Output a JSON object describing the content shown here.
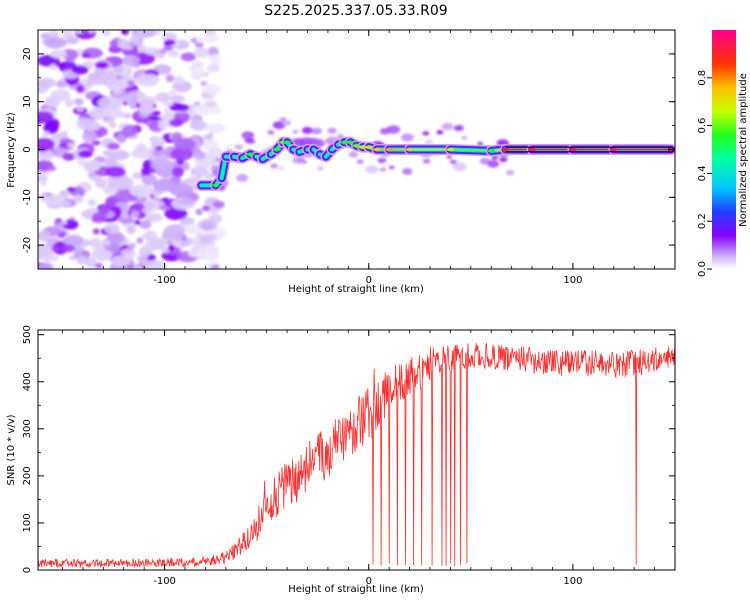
{
  "title": "S225.2025.337.05.33.R09",
  "colors": {
    "snr_line": "#ff3030",
    "axis": "#000000",
    "colormap": [
      "#ffffff",
      "#c8a8f8",
      "#8800ff",
      "#2040ff",
      "#00e0ff",
      "#00ff40",
      "#c8ff00",
      "#ffa000",
      "#ff2000",
      "#ff00a0"
    ]
  },
  "chart_data": [
    {
      "type": "heatmap",
      "xlabel": "Height of straight line (km)",
      "ylabel": "Frequency (Hz)",
      "xlim": [
        -162,
        150
      ],
      "ylim": [
        -25,
        25
      ],
      "xticks": [
        -100,
        0,
        100
      ],
      "xtick_labels": [
        "-100",
        "0",
        "100"
      ],
      "yticks": [
        -20,
        -10,
        0,
        10,
        20
      ],
      "ytick_labels": [
        "-20",
        "-10",
        "0",
        "10",
        "20"
      ],
      "noise_region_x": [
        -162,
        -80
      ],
      "ridge": {
        "x": [
          -82,
          -75,
          -72,
          -70,
          -66,
          -62,
          -58,
          -55,
          -52,
          -48,
          -45,
          -42,
          -40,
          -37,
          -34,
          -30,
          -27,
          -24,
          -21,
          -18,
          -15,
          -12,
          -9,
          -6,
          -3,
          0,
          4,
          10,
          20,
          40,
          60,
          67,
          80,
          100,
          120,
          148
        ],
        "freq": [
          -7.5,
          -7.5,
          -6,
          -1.5,
          -1.5,
          -1.8,
          -1,
          -1.5,
          -2,
          -1,
          0,
          1.5,
          1.5,
          0,
          -0.5,
          0,
          0,
          -1,
          -1.5,
          0,
          1,
          1.5,
          1.5,
          0.8,
          0.5,
          0.5,
          0,
          0,
          0,
          0,
          -0.3,
          0,
          0,
          0,
          0,
          0
        ],
        "amplitude": [
          0.35,
          0.55,
          0.5,
          0.45,
          0.45,
          0.5,
          0.55,
          0.5,
          0.45,
          0.5,
          0.55,
          0.6,
          0.55,
          0.45,
          0.5,
          0.5,
          0.45,
          0.45,
          0.4,
          0.45,
          0.5,
          0.55,
          0.55,
          0.6,
          0.65,
          0.7,
          0.75,
          0.78,
          0.72,
          0.65,
          0.55,
          0.9,
          0.95,
          0.95,
          0.95,
          0.95
        ]
      }
    },
    {
      "type": "colorbar",
      "label": "Normalized spectral amplitude",
      "range": [
        0,
        1
      ],
      "ticks": [
        0,
        0.2,
        0.4,
        0.6,
        0.8
      ],
      "tick_labels": [
        "0.0",
        "0.2",
        "0.4",
        "0.6",
        "0.8"
      ]
    },
    {
      "type": "line",
      "xlabel": "Height of straight line (km)",
      "ylabel": "SNR (10 * v/v)",
      "xlim": [
        -162,
        150
      ],
      "ylim": [
        0,
        510
      ],
      "xticks": [
        -100,
        0,
        100
      ],
      "xtick_labels": [
        "-100",
        "0",
        "100"
      ],
      "yticks": [
        0,
        100,
        200,
        300,
        400,
        500
      ],
      "ytick_labels": [
        "0",
        "100",
        "200",
        "300",
        "400",
        "500"
      ],
      "series": [
        {
          "name": "SNR",
          "envelope": {
            "x": [
              -162,
              -140,
              -120,
              -100,
              -80,
              -70,
              -65,
              -60,
              -55,
              -50,
              -45,
              -40,
              -35,
              -30,
              -25,
              -20,
              -15,
              -10,
              -5,
              0,
              5,
              10,
              15,
              20,
              25,
              30,
              35,
              40,
              50,
              60,
              70,
              80,
              90,
              100,
              110,
              120,
              130,
              140,
              150
            ],
            "value": [
              15,
              14,
              15,
              16,
              18,
              25,
              40,
              65,
              95,
              130,
              160,
              175,
              200,
              220,
              235,
              250,
              280,
              290,
              310,
              330,
              350,
              380,
              400,
              410,
              420,
              440,
              445,
              450,
              455,
              455,
              450,
              445,
              440,
              440,
              440,
              435,
              440,
              445,
              450
            ],
            "spread": [
              9,
              9,
              9,
              9,
              10,
              15,
              20,
              28,
              35,
              45,
              50,
              55,
              55,
              55,
              55,
              55,
              55,
              60,
              60,
              60,
              55,
              50,
              45,
              40,
              38,
              35,
              32,
              30,
              28,
              28,
              28,
              28,
              28,
              28,
              28,
              28,
              28,
              28,
              28
            ]
          },
          "dropouts_x": [
            2,
            6,
            10,
            14,
            18,
            22,
            26,
            31,
            36,
            38,
            40,
            42,
            45,
            48,
            131
          ],
          "dropouts_min": 8
        }
      ]
    }
  ]
}
